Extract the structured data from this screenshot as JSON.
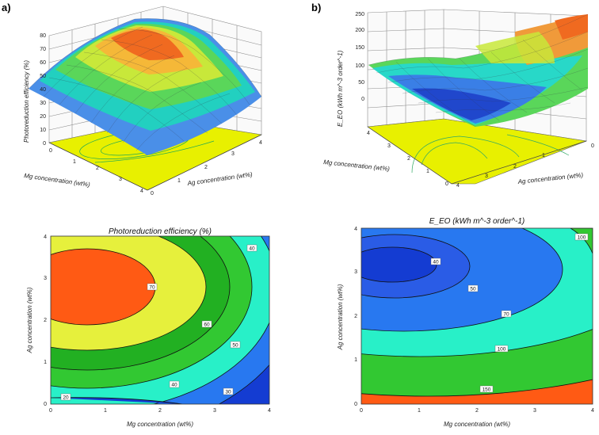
{
  "panels": {
    "a": "a)",
    "b": "b)"
  },
  "colors": {
    "contour_red": "#ff5a14",
    "contour_yellow": "#e6f03c",
    "contour_green": "#32c832",
    "contour_cyan": "#28f0c8",
    "contour_blue": "#2878f0",
    "contour_darkblue": "#143cd2",
    "floor_yellow": "#e8f000",
    "grid": "#8c8c8c"
  },
  "chart_data": [
    {
      "id": "surface_a",
      "type": "surface3d",
      "zlabel": "Photoreduction efficiency (%)",
      "xlabel": "Mg concentration (wt%)",
      "ylabel": "Ag concentration (wt%)",
      "xticks": [
        "0",
        "1",
        "2",
        "3",
        "4"
      ],
      "yticks": [
        "0",
        "1",
        "2",
        "3",
        "4"
      ],
      "zticks": [
        "0",
        "10",
        "20",
        "30",
        "40",
        "50",
        "60",
        "70",
        "80"
      ],
      "xlim": [
        0,
        4
      ],
      "ylim": [
        0,
        4
      ],
      "zlim": [
        0,
        80
      ],
      "peak": {
        "x": 0.5,
        "y": 2.7,
        "z": 72
      }
    },
    {
      "id": "surface_b",
      "type": "surface3d",
      "zlabel": "E_EO (kWh m^-3 order^-1)",
      "xlabel": "Ag concentration (wt%)",
      "ylabel": "Mg concentration (wt%)",
      "xticks": [
        "0",
        "1",
        "2",
        "3",
        "4"
      ],
      "yticks": [
        "0",
        "1",
        "2",
        "3",
        "4"
      ],
      "zticks": [
        "0",
        "50",
        "100",
        "150",
        "200",
        "250"
      ],
      "xlim": [
        0,
        4
      ],
      "ylim": [
        0,
        4
      ],
      "zlim": [
        0,
        250
      ],
      "minimum": {
        "x": 3.2,
        "y": 0.5,
        "z": 38
      }
    },
    {
      "id": "contour_a",
      "type": "contour",
      "title": "Photoreduction efficiency (%)",
      "xlabel": "Mg concentration (wt%)",
      "ylabel": "Ag concentration (wt%)",
      "xticks": [
        "0",
        "1",
        "2",
        "3",
        "4"
      ],
      "yticks": [
        "0",
        "1",
        "2",
        "3",
        "4"
      ],
      "xlim": [
        0,
        4
      ],
      "ylim": [
        0,
        4
      ],
      "levels": [
        20,
        30,
        40,
        50,
        60,
        70
      ],
      "labels": [
        "70",
        "60",
        "50",
        "40",
        "40",
        "30",
        "20"
      ]
    },
    {
      "id": "contour_b",
      "type": "contour",
      "title": "E_EO (kWh m^-3 order^-1)",
      "xlabel": "Mg concentration (wt%)",
      "ylabel": "Ag concentration (wt%)",
      "xticks": [
        "0",
        "1",
        "2",
        "3",
        "4"
      ],
      "yticks": [
        "0",
        "1",
        "2",
        "3",
        "4"
      ],
      "xlim": [
        0,
        4
      ],
      "ylim": [
        0,
        4
      ],
      "levels": [
        40,
        50,
        70,
        100,
        150
      ],
      "labels": [
        "40",
        "50",
        "70",
        "100",
        "100",
        "150"
      ]
    }
  ]
}
